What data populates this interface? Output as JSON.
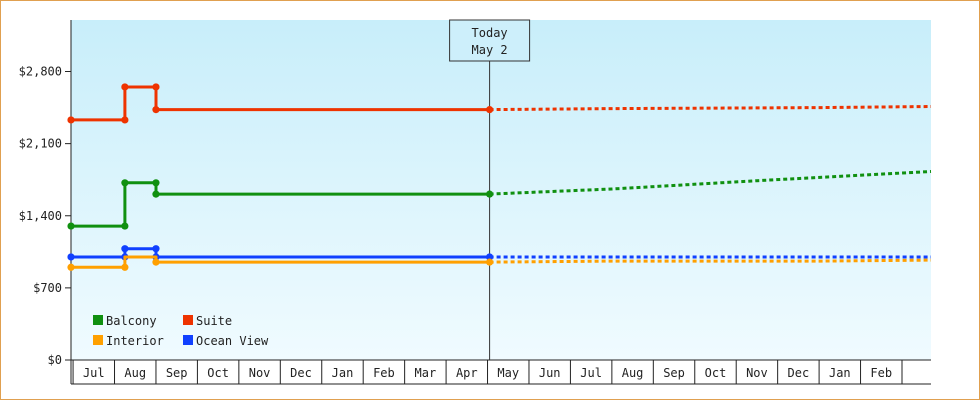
{
  "chart_data": {
    "type": "line",
    "title": "",
    "xlabel": "",
    "ylabel": "",
    "ylim": [
      0,
      3300
    ],
    "y_ticks": [
      {
        "value": 0,
        "label": "$0"
      },
      {
        "value": 700,
        "label": "$700"
      },
      {
        "value": 1400,
        "label": "$1,400"
      },
      {
        "value": 2100,
        "label": "$2,100"
      },
      {
        "value": 2800,
        "label": "$2,800"
      }
    ],
    "x_tick_labels": [
      "Jul",
      "Aug",
      "Sep",
      "Oct",
      "Nov",
      "Dec",
      "Jan",
      "Feb",
      "Mar",
      "Apr",
      "May",
      "Jun",
      "Jul",
      "Aug",
      "Sep",
      "Oct",
      "Nov",
      "Dec",
      "Jan",
      "Feb"
    ],
    "x_range": [
      -0.55,
      20.2
    ],
    "today": {
      "line1": "Today",
      "line2": "May 2",
      "x": 9.55
    },
    "grid": false,
    "legend_placement": "bottom-left",
    "series": [
      {
        "name": "Balcony",
        "color": "#109010",
        "points": [
          [
            -0.55,
            1300
          ],
          [
            0.75,
            1300
          ],
          [
            0.75,
            1720
          ],
          [
            1.5,
            1720
          ],
          [
            1.5,
            1610
          ],
          [
            9.55,
            1610
          ]
        ],
        "forecast": [
          [
            9.55,
            1610
          ],
          [
            12.5,
            1660
          ],
          [
            16.0,
            1740
          ],
          [
            20.2,
            1830
          ]
        ]
      },
      {
        "name": "Suite",
        "color": "#ee3300",
        "points": [
          [
            -0.55,
            2330
          ],
          [
            0.75,
            2330
          ],
          [
            0.75,
            2650
          ],
          [
            1.5,
            2650
          ],
          [
            1.5,
            2430
          ],
          [
            9.55,
            2430
          ]
        ],
        "forecast": [
          [
            9.55,
            2430
          ],
          [
            12.5,
            2440
          ],
          [
            17.5,
            2450
          ],
          [
            20.2,
            2460
          ]
        ]
      },
      {
        "name": "Interior",
        "color": "#ffa000",
        "points": [
          [
            -0.55,
            900
          ],
          [
            0.75,
            900
          ],
          [
            0.75,
            1000
          ],
          [
            1.5,
            1000
          ],
          [
            1.5,
            950
          ],
          [
            9.55,
            950
          ]
        ],
        "forecast": [
          [
            9.55,
            950
          ],
          [
            12.5,
            960
          ],
          [
            17.5,
            960
          ],
          [
            20.2,
            970
          ]
        ]
      },
      {
        "name": "Ocean View",
        "color": "#1040ff",
        "points": [
          [
            -0.55,
            1000
          ],
          [
            0.75,
            1000
          ],
          [
            0.75,
            1080
          ],
          [
            1.5,
            1080
          ],
          [
            1.5,
            1000
          ],
          [
            9.55,
            1000
          ]
        ],
        "forecast": [
          [
            9.55,
            1000
          ],
          [
            20.2,
            1000
          ]
        ]
      }
    ],
    "markers": {
      "Balcony": [
        [
          -0.55,
          1300
        ],
        [
          0.75,
          1300
        ],
        [
          0.75,
          1720
        ],
        [
          1.5,
          1720
        ],
        [
          1.5,
          1610
        ],
        [
          9.55,
          1610
        ]
      ],
      "Suite": [
        [
          -0.55,
          2330
        ],
        [
          0.75,
          2330
        ],
        [
          0.75,
          2650
        ],
        [
          1.5,
          2650
        ],
        [
          1.5,
          2430
        ],
        [
          9.55,
          2430
        ]
      ],
      "Interior": [
        [
          -0.55,
          900
        ],
        [
          0.75,
          900
        ],
        [
          1.5,
          950
        ],
        [
          9.55,
          950
        ]
      ],
      "Ocean View": [
        [
          -0.55,
          1000
        ],
        [
          0.75,
          1000
        ],
        [
          0.75,
          1080
        ],
        [
          1.5,
          1080
        ],
        [
          1.5,
          1000
        ],
        [
          9.55,
          1000
        ]
      ]
    },
    "legend": [
      {
        "name": "Balcony",
        "color": "#109010"
      },
      {
        "name": "Suite",
        "color": "#ee3300"
      },
      {
        "name": "Interior",
        "color": "#ffa000"
      },
      {
        "name": "Ocean View",
        "color": "#1040ff"
      }
    ]
  }
}
